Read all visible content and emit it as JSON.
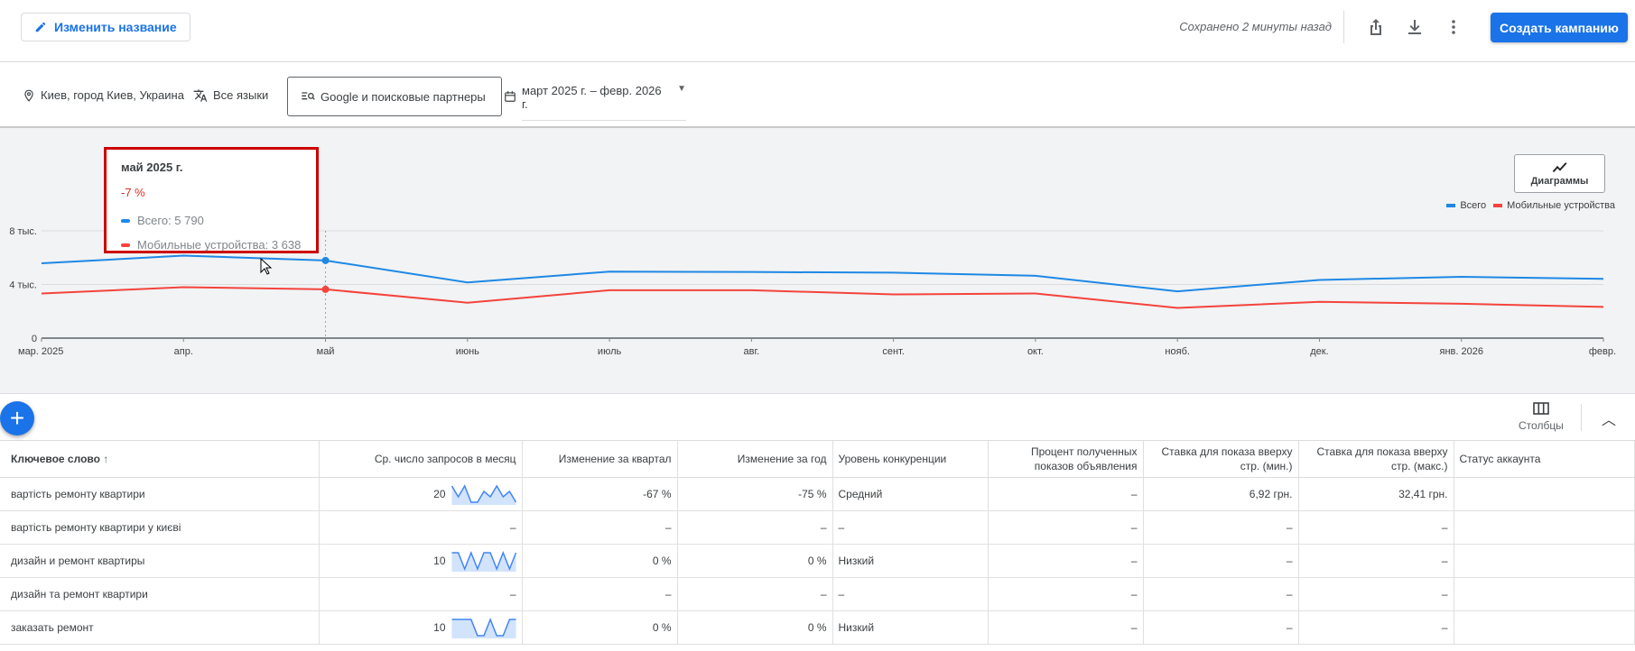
{
  "topbar": {
    "rename_label": "Изменить название",
    "saved_text": "Сохранено 2 минуты назад",
    "create_label": "Создать кампанию",
    "icons": [
      "pencil-icon",
      "share-icon",
      "download-icon",
      "more-vert-icon"
    ]
  },
  "filters": {
    "location": "Киев, город Киев, Украина",
    "language": "Все языки",
    "network": "Google и поисковые партнеры",
    "date_range": "март 2025 г. – февр. 2026 г."
  },
  "tooltip": {
    "title": "май 2025 г.",
    "change": "-7 %",
    "total": "Всего: 5 790",
    "mobile": "Мобильные устройства: 3 638"
  },
  "charts_button": "Диаграммы",
  "colors": {
    "total": "#1e88e5",
    "mobile": "#f4433c",
    "accent": "#1a73e8"
  },
  "chart_data": {
    "type": "line",
    "categories": [
      "мар. 2025",
      "апр.",
      "май",
      "июнь",
      "июль",
      "авг.",
      "сент.",
      "окт.",
      "нояб.",
      "дек.",
      "янв. 2026",
      "февр."
    ],
    "yticks": [
      "0",
      "4 тыс.",
      "8 тыс."
    ],
    "ytick_values": [
      0,
      4000,
      8000
    ],
    "ylim": [
      0,
      8000
    ],
    "legend": "top-right",
    "highlight_index": 2,
    "series": [
      {
        "name": "Всего",
        "color": "#1e88e5",
        "values": [
          5580,
          6150,
          5790,
          4150,
          4960,
          4930,
          4880,
          4650,
          3490,
          4340,
          4570,
          4420
        ]
      },
      {
        "name": "Мобильные устройства",
        "color": "#f4433c",
        "values": [
          3330,
          3800,
          3638,
          2640,
          3570,
          3570,
          3260,
          3330,
          2250,
          2710,
          2560,
          2330
        ]
      }
    ]
  },
  "table": {
    "columns_label": "Столбцы",
    "headers": [
      "Ключевое слово",
      "Ср. число запросов в месяц",
      "Изменение за квартал",
      "Изменение за год",
      "Уровень конкуренции",
      "Процент полученных показов объявления",
      "Ставка для показа вверху стр. (мин.)",
      "Ставка для показа вверху стр. (макс.)",
      "Статус аккаунта"
    ],
    "rows": [
      {
        "cells": [
          "вартість ремонту квартири",
          "20",
          "-67 %",
          "-75 %",
          "Средний",
          "–",
          "6,92 грн.",
          "32,41 грн.",
          ""
        ],
        "trend": [
          3,
          1,
          3,
          0,
          0,
          2,
          1,
          3,
          1,
          2,
          0
        ]
      },
      {
        "cells": [
          "вартість ремонту квартири у києві",
          "–",
          "–",
          "–",
          "–",
          "–",
          "–",
          "–",
          ""
        ],
        "trend": null
      },
      {
        "cells": [
          "дизайн и ремонт квартиры",
          "10",
          "0 %",
          "0 %",
          "Низкий",
          "–",
          "–",
          "–",
          ""
        ],
        "trend": [
          3,
          3,
          0,
          3,
          0,
          3,
          3,
          0,
          3,
          0,
          3
        ]
      },
      {
        "cells": [
          "дизайн та ремонт квартири",
          "–",
          "–",
          "–",
          "–",
          "–",
          "–",
          "–",
          ""
        ],
        "trend": null
      },
      {
        "cells": [
          "заказать ремонт",
          "10",
          "0 %",
          "0 %",
          "Низкий",
          "–",
          "–",
          "–",
          ""
        ],
        "trend": [
          3,
          3,
          3,
          3,
          0,
          0,
          3,
          0,
          0,
          3,
          3
        ]
      }
    ]
  }
}
